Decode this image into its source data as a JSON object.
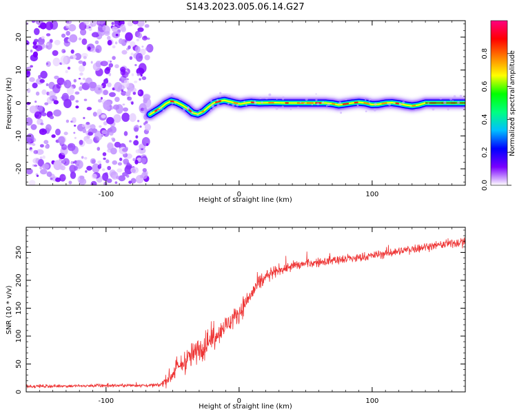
{
  "figure": {
    "title": "S143.2023.005.06.14.G27"
  },
  "chart_data": [
    {
      "type": "heatmap",
      "xlabel": "Height of straight line (km)",
      "ylabel": "Frequency (Hz)",
      "xlim": [
        -160,
        170
      ],
      "ylim": [
        -25,
        25
      ],
      "xticks": [
        -100,
        0,
        100
      ],
      "yticks": [
        -20,
        -10,
        0,
        10,
        20
      ],
      "colorbar": {
        "label": "Normalized spectral amplitude",
        "range": [
          0,
          1
        ],
        "ticks": [
          0,
          0.2,
          0.4,
          0.6,
          0.8
        ],
        "tick_labels": [
          "0.0",
          "0.2",
          "0.4",
          "0.6",
          "0.8"
        ],
        "colors": [
          "#ffffff",
          "#7a00ff",
          "#0000ff",
          "#00bfff",
          "#00ff80",
          "#00ff00",
          "#ffff00",
          "#ff8000",
          "#ff0000",
          "#ff0080"
        ]
      },
      "noise_region_x": [
        -160,
        -67
      ],
      "ridge": {
        "x": [
          -67,
          -63,
          -59,
          -55,
          -51,
          -47,
          -43,
          -39,
          -35,
          -31,
          -27,
          -23,
          -19,
          -15,
          -11,
          -7,
          -3,
          1,
          5,
          9,
          15,
          25,
          35,
          45,
          55,
          65,
          70,
          75,
          80,
          85,
          90,
          95,
          100,
          105,
          110,
          115,
          120,
          125,
          130,
          135,
          140,
          150,
          160,
          170
        ],
        "y": [
          -3.5,
          -2.5,
          -1.5,
          -0.2,
          0.6,
          0.2,
          -0.6,
          -1.6,
          -3,
          -3.4,
          -2.6,
          -1.2,
          0,
          0.5,
          0.8,
          0.4,
          0,
          -0.3,
          0,
          0.2,
          0,
          0.1,
          0,
          0,
          0,
          0,
          -0.2,
          -0.6,
          -0.3,
          0,
          0.2,
          0,
          -0.5,
          -0.4,
          0,
          0.1,
          -0.2,
          -0.6,
          -0.9,
          -0.6,
          0,
          0,
          0,
          0
        ]
      }
    },
    {
      "type": "line",
      "xlabel": "Height of straight line (km)",
      "ylabel": "SNR (10 * v/v)",
      "xlim": [
        -160,
        170
      ],
      "ylim": [
        0,
        295
      ],
      "xticks": [
        -100,
        0,
        100
      ],
      "yticks": [
        0,
        50,
        100,
        150,
        200,
        250
      ],
      "color": "#ee3333",
      "trend": {
        "x": [
          -160,
          -60,
          -55,
          -50,
          -45,
          -40,
          -35,
          -30,
          -25,
          -20,
          -15,
          -10,
          -5,
          0,
          5,
          10,
          15,
          20,
          25,
          30,
          40,
          50,
          60,
          70,
          80,
          90,
          100,
          110,
          120,
          130,
          140,
          150,
          160,
          170
        ],
        "y": [
          10,
          12,
          20,
          32,
          45,
          56,
          66,
          76,
          86,
          96,
          108,
          118,
          130,
          142,
          160,
          178,
          195,
          205,
          212,
          218,
          225,
          230,
          232,
          236,
          238,
          240,
          244,
          248,
          252,
          256,
          260,
          263,
          266,
          270
        ]
      },
      "noise_amplitude": {
        "x": [
          -160,
          -60,
          -50,
          -40,
          -30,
          -20,
          -10,
          0,
          10,
          20,
          30,
          60,
          100,
          170
        ],
        "y": [
          5,
          6,
          30,
          40,
          40,
          40,
          36,
          32,
          30,
          26,
          18,
          15,
          15,
          15
        ]
      }
    }
  ]
}
